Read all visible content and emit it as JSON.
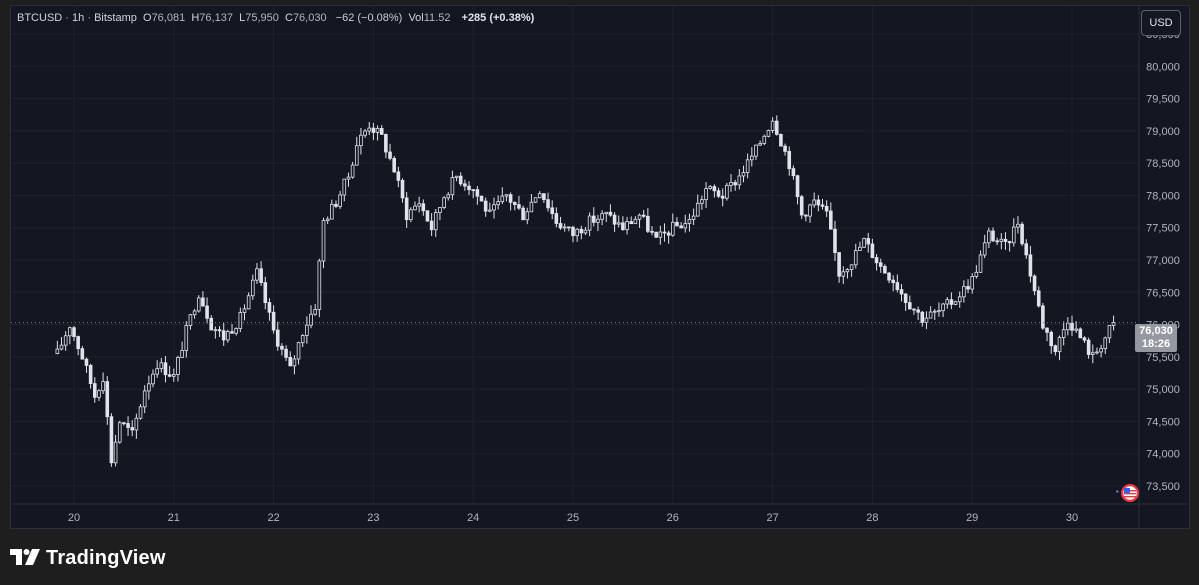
{
  "legend": {
    "symbol": "BTCUSD",
    "separator1": "·",
    "interval": "1h",
    "separator2": "·",
    "exchange": "Bitstamp",
    "open_label": "O",
    "open_value": "76,081",
    "high_label": "H",
    "high_value": "76,137",
    "low_label": "L",
    "low_value": "75,950",
    "close_label": "C",
    "close_value": "76,030",
    "change": "−62 (−0.08%)",
    "volume_label": "Vol",
    "volume_value": "11.52",
    "session_change": "+285 (+0.38%)"
  },
  "currency_button": "USD",
  "last_price": {
    "price": "76,030",
    "countdown": "18:26"
  },
  "brand": {
    "name": "TradingView"
  },
  "colors": {
    "background": "#131722",
    "candle": "#e0e3eb",
    "grid": "#1e222d",
    "axis_text": "#b2b5be"
  },
  "chart_data": {
    "type": "candlestick",
    "title": "",
    "x_ticks": [
      "20",
      "21",
      "22",
      "23",
      "24",
      "25",
      "26",
      "27",
      "28",
      "29",
      "30"
    ],
    "y_ticks": [
      "73,500",
      "74,000",
      "74,500",
      "75,000",
      "75,500",
      "76,000",
      "76,500",
      "77,000",
      "77,500",
      "78,000",
      "78,500",
      "79,000",
      "79,500",
      "80,000",
      "80,500"
    ],
    "y_range": [
      73250,
      81000
    ],
    "grid": true,
    "last_close": 76030,
    "close_path": [
      [
        "19 20:00",
        75550
      ],
      [
        "19 23:00",
        76000
      ],
      [
        "20 02:00",
        75500
      ],
      [
        "20 05:00",
        74900
      ],
      [
        "20 07:00",
        75200
      ],
      [
        "20 09:00",
        73900
      ],
      [
        "20 11:00",
        74500
      ],
      [
        "20 14:00",
        74300
      ],
      [
        "20 17:00",
        75000
      ],
      [
        "20 20:00",
        75400
      ],
      [
        "21 00:00",
        75200
      ],
      [
        "21 03:00",
        75900
      ],
      [
        "21 06:00",
        76500
      ],
      [
        "21 09:00",
        76000
      ],
      [
        "21 12:00",
        75800
      ],
      [
        "21 16:00",
        76100
      ],
      [
        "21 20:00",
        76800
      ],
      [
        "22 00:00",
        75900
      ],
      [
        "22 04:00",
        75300
      ],
      [
        "22 07:00",
        75900
      ],
      [
        "22 10:00",
        76300
      ],
      [
        "22 12:00",
        77600
      ],
      [
        "22 15:00",
        77900
      ],
      [
        "22 18:00",
        78300
      ],
      [
        "22 20:00",
        78800
      ],
      [
        "22 23:00",
        79100
      ],
      [
        "23 02:00",
        78900
      ],
      [
        "23 05:00",
        78400
      ],
      [
        "23 08:00",
        77700
      ],
      [
        "23 11:00",
        77900
      ],
      [
        "23 14:00",
        77500
      ],
      [
        "23 17:00",
        78000
      ],
      [
        "23 20:00",
        78300
      ],
      [
        "24 00:00",
        78100
      ],
      [
        "24 04:00",
        77700
      ],
      [
        "24 08:00",
        78000
      ],
      [
        "24 12:00",
        77700
      ],
      [
        "24 16:00",
        78100
      ],
      [
        "24 20:00",
        77600
      ],
      [
        "25 00:00",
        77400
      ],
      [
        "25 04:00",
        77600
      ],
      [
        "25 08:00",
        77700
      ],
      [
        "25 12:00",
        77500
      ],
      [
        "25 16:00",
        77700
      ],
      [
        "25 20:00",
        77300
      ],
      [
        "26 00:00",
        77500
      ],
      [
        "26 04:00",
        77600
      ],
      [
        "26 08:00",
        78100
      ],
      [
        "26 12:00",
        78000
      ],
      [
        "26 16:00",
        78300
      ],
      [
        "26 20:00",
        78700
      ],
      [
        "27 00:00",
        79200
      ],
      [
        "27 04:00",
        78500
      ],
      [
        "27 07:00",
        77700
      ],
      [
        "27 10:00",
        77900
      ],
      [
        "27 13:00",
        77700
      ],
      [
        "27 16:00",
        76800
      ],
      [
        "27 19:00",
        77000
      ],
      [
        "27 22:00",
        77300
      ],
      [
        "28 02:00",
        76900
      ],
      [
        "28 05:00",
        76700
      ],
      [
        "28 08:00",
        76400
      ],
      [
        "28 12:00",
        76100
      ],
      [
        "28 16:00",
        76200
      ],
      [
        "28 20:00",
        76400
      ],
      [
        "29 00:00",
        76700
      ],
      [
        "29 04:00",
        77400
      ],
      [
        "29 08:00",
        77200
      ],
      [
        "29 11:00",
        77600
      ],
      [
        "29 14:00",
        76800
      ],
      [
        "29 17:00",
        76000
      ],
      [
        "29 20:00",
        75600
      ],
      [
        "29 23:00",
        76100
      ],
      [
        "30 02:00",
        75800
      ],
      [
        "30 05:00",
        75500
      ],
      [
        "30 08:00",
        75800
      ],
      [
        "30 10:00",
        76030
      ]
    ]
  }
}
